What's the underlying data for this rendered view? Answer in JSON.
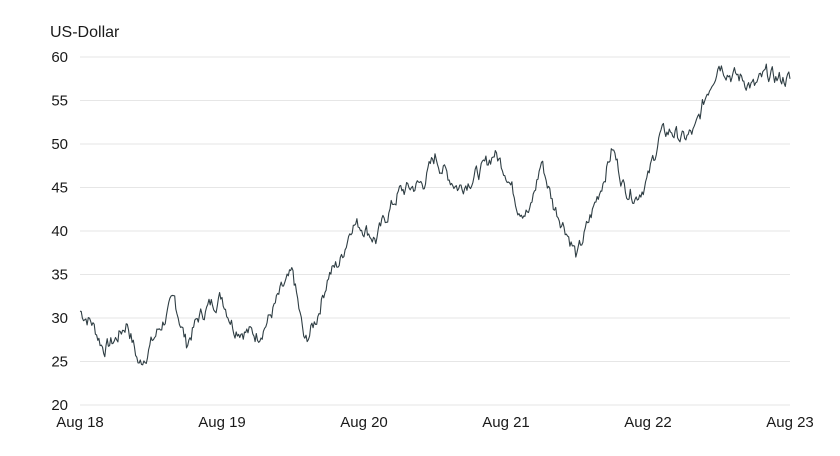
{
  "chart_data": {
    "type": "line",
    "title": "",
    "xlabel": "",
    "ylabel": "US-Dollar",
    "ylim": [
      20,
      60
    ],
    "xlim": [
      "2018-08",
      "2023-08"
    ],
    "yticks": [
      20,
      25,
      30,
      35,
      40,
      45,
      50,
      55,
      60
    ],
    "xticks": [
      {
        "label": "Aug 18",
        "date": "2018-08"
      },
      {
        "label": "Aug 19",
        "date": "2019-08"
      },
      {
        "label": "Aug 20",
        "date": "2020-08"
      },
      {
        "label": "Aug 21",
        "date": "2021-08"
      },
      {
        "label": "Aug 22",
        "date": "2022-08"
      },
      {
        "label": "Aug 23",
        "date": "2023-08"
      }
    ],
    "grid": true,
    "line_color": "#2f3e44",
    "series": [
      {
        "x": [
          "2018-08",
          "2018-09",
          "2018-10",
          "2018-11",
          "2018-12",
          "2019-01",
          "2019-02",
          "2019-03",
          "2019-04",
          "2019-05",
          "2019-06",
          "2019-07",
          "2019-08",
          "2019-09",
          "2019-10",
          "2019-11",
          "2019-12",
          "2020-01",
          "2020-02",
          "2020-03",
          "2020-04",
          "2020-05",
          "2020-06",
          "2020-07",
          "2020-08",
          "2020-09",
          "2020-10",
          "2020-11",
          "2020-12",
          "2021-01",
          "2021-02",
          "2021-03",
          "2021-04",
          "2021-05",
          "2021-06",
          "2021-07",
          "2021-08",
          "2021-09",
          "2021-10",
          "2021-11",
          "2021-12",
          "2022-01",
          "2022-02",
          "2022-03",
          "2022-04",
          "2022-05",
          "2022-06",
          "2022-07",
          "2022-08",
          "2022-09",
          "2022-10",
          "2022-11",
          "2022-12",
          "2023-01",
          "2023-02",
          "2023-03",
          "2023-04",
          "2023-05",
          "2023-06",
          "2023-07",
          "2023-08"
        ],
        "values": [
          30.8,
          29.5,
          26.5,
          27.5,
          29.5,
          24.5,
          27.0,
          29.5,
          32.0,
          27.0,
          30.0,
          31.5,
          32.5,
          29.0,
          28.5,
          28.0,
          30.0,
          33.0,
          35.0,
          27.0,
          30.0,
          35.0,
          36.5,
          41.0,
          40.5,
          39.0,
          42.0,
          44.5,
          45.0,
          45.5,
          48.5,
          46.5,
          45.0,
          46.0,
          47.0,
          49.0,
          47.0,
          43.0,
          42.0,
          48.0,
          43.0,
          40.5,
          37.0,
          41.0,
          45.0,
          49.5,
          45.0,
          44.0,
          46.0,
          51.0,
          51.5,
          50.5,
          51.5,
          56.0,
          59.5,
          58.0,
          57.5,
          56.5,
          58.0,
          57.5,
          57.5
        ]
      }
    ]
  }
}
